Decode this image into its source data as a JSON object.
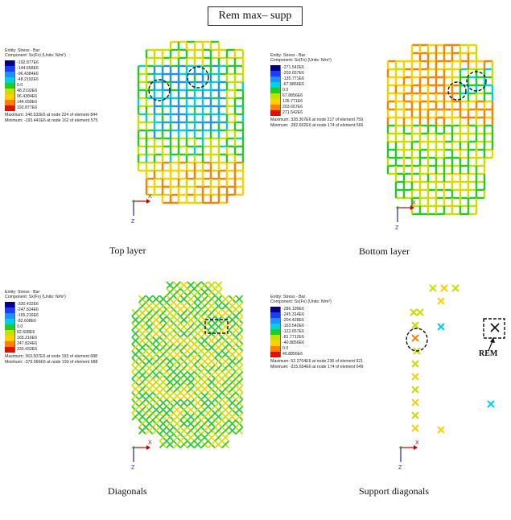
{
  "title": "Rem max– supp",
  "panels": [
    {
      "caption": "Top layer",
      "entity": "Entity: Stress - Bar",
      "component": "Component: Sx(Fx) (Units: N/m²)",
      "scale": [
        "-192.877E6",
        "-144.658E6",
        "-96.4384E6",
        "-48.2192E6",
        "0.0",
        "48.2192E6",
        "96.4384E6",
        "144.658E6",
        "192.877E6"
      ],
      "maximum": "Maximum: 240.532E6 at node 224 of element 844",
      "minimum": "Minimum: -193.441E6 at node 162 of element 575",
      "axis_x": "X",
      "axis_z": "Z"
    },
    {
      "caption": "Bottom layer",
      "entity": "Entity: Stress - Bar",
      "component": "Component: Sx(Fx) (Units: N/m²)",
      "scale": [
        "-271.542E6",
        "-203.657E6",
        "-135.771E6",
        "-67.8856E6",
        "0.0",
        "67.8856E6",
        "135.771E6",
        "203.657E6",
        "271.542E6"
      ],
      "maximum": "Maximum: 328.367E6 at node 217 of element 759",
      "minimum": "Minimum: -282.602E6 at node 174 of element 566",
      "axis_x": "X",
      "axis_z": "Z"
    },
    {
      "caption": "Diagonals",
      "entity": "Entity: Stress - Bar",
      "component": "Component: Sx(Fx) (Units: N/m²)",
      "scale": [
        "-330.432E6",
        "-247.824E6",
        "-165.216E6",
        "-82.608E6",
        "0.0",
        "82.608E6",
        "165.216E6",
        "247.824E6",
        "330.432E6"
      ],
      "maximum": "Maximum: 363.507E6 at node 193 of element 688",
      "minimum": "Minimum: -379.966E6 at node 193 of element 688",
      "axis_x": "X",
      "axis_z": "Z"
    },
    {
      "caption": "Support diagonals",
      "entity": "Entity: Stress - Bar",
      "component": "Component: Sx(Fx) (Units: N/m²)",
      "scale": [
        "-286.199E6",
        "-245.314E6",
        "-204.428E6",
        "-163.542E6",
        "-122.657E6",
        "-81.7712E6",
        "-40.8856E6",
        "0.0",
        "40.8856E6"
      ],
      "maximum": "Maximum: 52.3764E6 at node 236 of element 921",
      "minimum": "Minimum: -315.654E6 at node 174 of element 649",
      "axis_x": "X",
      "axis_z": "Z"
    }
  ],
  "rem_label": "REM",
  "colors": {
    "scale": [
      "#00008b",
      "#1a3cff",
      "#1e90ff",
      "#00d0e0",
      "#22cc22",
      "#c8e000",
      "#ffd000",
      "#ff8000",
      "#e01000"
    ],
    "annotation": "#111111"
  }
}
